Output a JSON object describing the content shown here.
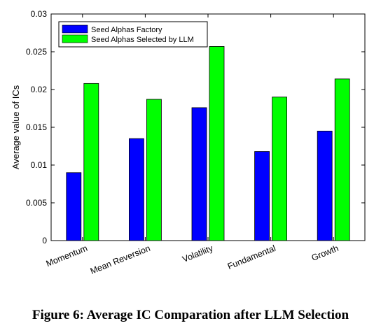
{
  "chart_data": {
    "type": "bar",
    "title": "",
    "xlabel": "",
    "ylabel": "Average value of ICs",
    "categories": [
      "Momentum",
      "Mean Reversion",
      "Volatility",
      "Fundamental",
      "Growth"
    ],
    "series": [
      {
        "name": "Seed Alphas Factory",
        "color": "#0000ff",
        "values": [
          0.009,
          0.0135,
          0.0176,
          0.0118,
          0.0145
        ]
      },
      {
        "name": "Seed Alphas Selected by LLM",
        "color": "#00ff00",
        "values": [
          0.0208,
          0.0187,
          0.0257,
          0.019,
          0.0214
        ]
      }
    ],
    "ylim": [
      0,
      0.03
    ],
    "yticks": [
      "0",
      "0.005",
      "0.01",
      "0.015",
      "0.02",
      "0.025",
      "0.03"
    ],
    "grid": false,
    "legend_position": "top-left"
  },
  "caption": "Figure 6: Average IC Comparation after LLM Selection"
}
